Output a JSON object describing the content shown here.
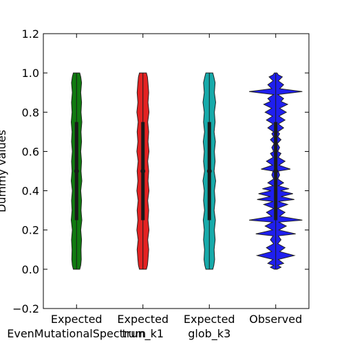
{
  "chart_data": {
    "type": "violin",
    "title": "",
    "xlabel": "",
    "ylabel": "Dummy values",
    "ylim": [
      -0.2,
      1.2
    ],
    "yticks": [
      -0.2,
      0.0,
      0.2,
      0.4,
      0.6,
      0.8,
      1.0,
      1.2
    ],
    "ytick_labels": [
      "−0.2",
      "0.0",
      "0.2",
      "0.4",
      "0.6",
      "0.8",
      "1.0",
      "1.2"
    ],
    "grid": false,
    "legend": "none",
    "categories": [
      {
        "line1": "Expected",
        "line2": "EvenMutationalSpectrum",
        "color": "#107a10"
      },
      {
        "line1": "Expected",
        "line2": "trun_k1",
        "color": "#e32222"
      },
      {
        "line1": "Expected",
        "line2": "glob_k3",
        "color": "#17aaaa"
      },
      {
        "line1": "Observed",
        "line2": "",
        "color": "#1f1fef"
      }
    ],
    "series": [
      {
        "category": "Expected EvenMutationalSpectrum",
        "min": 0.0,
        "q1": 0.25,
        "median": 0.5,
        "q3": 0.75,
        "max": 1.0,
        "density": [
          [
            0.0,
            0.12
          ],
          [
            0.02,
            0.16
          ],
          [
            0.05,
            0.18
          ],
          [
            0.1,
            0.17
          ],
          [
            0.15,
            0.19
          ],
          [
            0.2,
            0.16
          ],
          [
            0.25,
            0.2
          ],
          [
            0.3,
            0.17
          ],
          [
            0.35,
            0.19
          ],
          [
            0.4,
            0.16
          ],
          [
            0.45,
            0.2
          ],
          [
            0.5,
            0.17
          ],
          [
            0.55,
            0.19
          ],
          [
            0.6,
            0.16
          ],
          [
            0.65,
            0.19
          ],
          [
            0.7,
            0.17
          ],
          [
            0.75,
            0.2
          ],
          [
            0.8,
            0.17
          ],
          [
            0.85,
            0.19
          ],
          [
            0.9,
            0.16
          ],
          [
            0.95,
            0.19
          ],
          [
            0.98,
            0.16
          ],
          [
            1.0,
            0.12
          ]
        ]
      },
      {
        "category": "Expected trun_k1",
        "min": 0.0,
        "q1": 0.25,
        "median": 0.5,
        "q3": 0.75,
        "max": 1.0,
        "density": [
          [
            0.0,
            0.13
          ],
          [
            0.02,
            0.17
          ],
          [
            0.05,
            0.19
          ],
          [
            0.1,
            0.22
          ],
          [
            0.15,
            0.18
          ],
          [
            0.2,
            0.23
          ],
          [
            0.25,
            0.19
          ],
          [
            0.3,
            0.22
          ],
          [
            0.35,
            0.18
          ],
          [
            0.4,
            0.23
          ],
          [
            0.45,
            0.19
          ],
          [
            0.5,
            0.22
          ],
          [
            0.55,
            0.18
          ],
          [
            0.6,
            0.23
          ],
          [
            0.65,
            0.19
          ],
          [
            0.7,
            0.22
          ],
          [
            0.75,
            0.18
          ],
          [
            0.8,
            0.23
          ],
          [
            0.85,
            0.19
          ],
          [
            0.9,
            0.22
          ],
          [
            0.95,
            0.19
          ],
          [
            0.98,
            0.17
          ],
          [
            1.0,
            0.13
          ]
        ]
      },
      {
        "category": "Expected glob_k3",
        "min": 0.0,
        "q1": 0.25,
        "median": 0.5,
        "q3": 0.75,
        "max": 1.0,
        "density": [
          [
            0.0,
            0.13
          ],
          [
            0.02,
            0.17
          ],
          [
            0.05,
            0.2
          ],
          [
            0.1,
            0.18
          ],
          [
            0.15,
            0.22
          ],
          [
            0.2,
            0.19
          ],
          [
            0.25,
            0.23
          ],
          [
            0.3,
            0.18
          ],
          [
            0.35,
            0.22
          ],
          [
            0.4,
            0.19
          ],
          [
            0.45,
            0.24
          ],
          [
            0.5,
            0.18
          ],
          [
            0.55,
            0.22
          ],
          [
            0.6,
            0.19
          ],
          [
            0.65,
            0.23
          ],
          [
            0.7,
            0.18
          ],
          [
            0.75,
            0.22
          ],
          [
            0.8,
            0.19
          ],
          [
            0.85,
            0.24
          ],
          [
            0.9,
            0.19
          ],
          [
            0.95,
            0.22
          ],
          [
            0.98,
            0.17
          ],
          [
            1.0,
            0.13
          ]
        ]
      },
      {
        "category": "Observed",
        "min": 0.0,
        "q1": 0.25,
        "median": 0.5,
        "q3": 0.75,
        "max": 1.0,
        "density": [
          [
            0.0,
            0.05
          ],
          [
            0.01,
            0.2
          ],
          [
            0.02,
            0.08
          ],
          [
            0.03,
            0.3
          ],
          [
            0.05,
            0.1
          ],
          [
            0.07,
            0.7
          ],
          [
            0.09,
            0.15
          ],
          [
            0.11,
            0.35
          ],
          [
            0.13,
            0.08
          ],
          [
            0.15,
            0.2
          ],
          [
            0.17,
            0.1
          ],
          [
            0.18,
            0.75
          ],
          [
            0.2,
            0.12
          ],
          [
            0.22,
            0.4
          ],
          [
            0.24,
            0.12
          ],
          [
            0.25,
            1.0
          ],
          [
            0.27,
            0.15
          ],
          [
            0.29,
            0.35
          ],
          [
            0.31,
            0.08
          ],
          [
            0.33,
            0.45
          ],
          [
            0.345,
            0.1
          ],
          [
            0.355,
            0.7
          ],
          [
            0.37,
            0.2
          ],
          [
            0.385,
            0.65
          ],
          [
            0.4,
            0.18
          ],
          [
            0.41,
            0.5
          ],
          [
            0.425,
            0.1
          ],
          [
            0.44,
            0.3
          ],
          [
            0.46,
            0.08
          ],
          [
            0.48,
            0.15
          ],
          [
            0.5,
            0.1
          ],
          [
            0.51,
            0.55
          ],
          [
            0.53,
            0.12
          ],
          [
            0.55,
            0.35
          ],
          [
            0.57,
            0.1
          ],
          [
            0.59,
            0.2
          ],
          [
            0.6,
            0.08
          ],
          [
            0.62,
            0.15
          ],
          [
            0.64,
            0.06
          ],
          [
            0.66,
            0.2
          ],
          [
            0.675,
            0.08
          ],
          [
            0.69,
            0.15
          ],
          [
            0.7,
            0.08
          ],
          [
            0.72,
            0.3
          ],
          [
            0.74,
            0.1
          ],
          [
            0.76,
            0.35
          ],
          [
            0.78,
            0.12
          ],
          [
            0.8,
            0.4
          ],
          [
            0.82,
            0.15
          ],
          [
            0.84,
            0.45
          ],
          [
            0.855,
            0.2
          ],
          [
            0.87,
            0.3
          ],
          [
            0.89,
            0.08
          ],
          [
            0.905,
            1.0
          ],
          [
            0.92,
            0.15
          ],
          [
            0.94,
            0.3
          ],
          [
            0.96,
            0.1
          ],
          [
            0.98,
            0.25
          ],
          [
            0.99,
            0.1
          ],
          [
            1.0,
            0.05
          ]
        ]
      }
    ]
  }
}
